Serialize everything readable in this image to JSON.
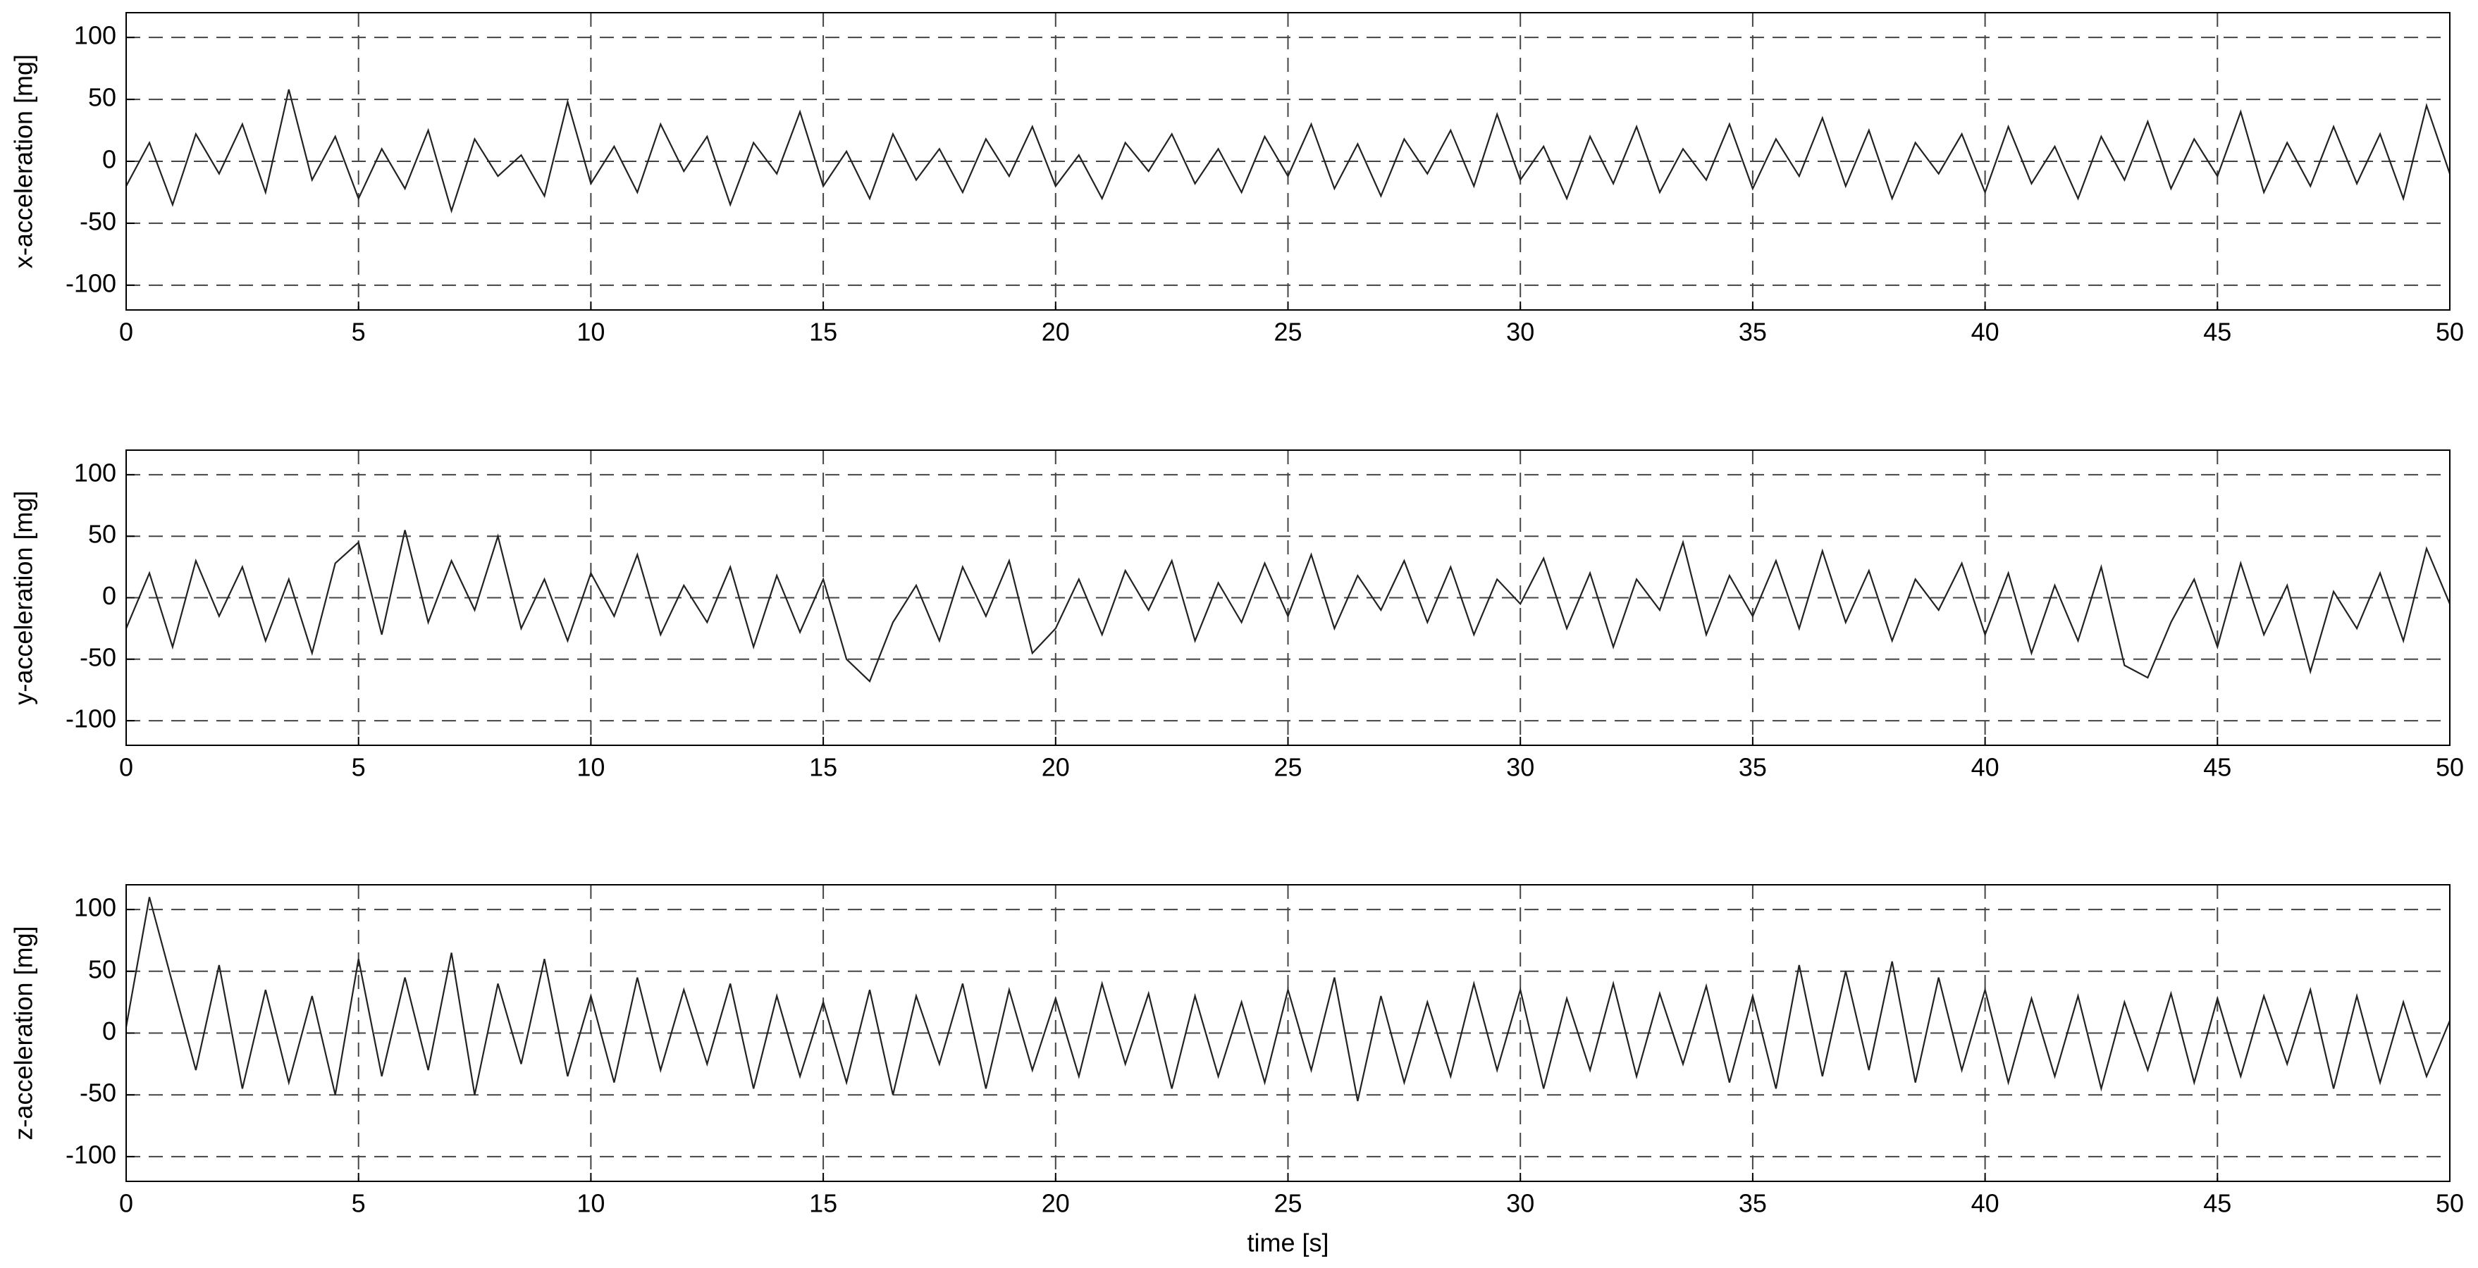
{
  "chart_data": [
    {
      "type": "line",
      "ylabel": "x-acceleration [mg]",
      "color": "#222222",
      "grid": true,
      "xlim": [
        0,
        50
      ],
      "xticks": [
        0,
        5,
        10,
        15,
        20,
        25,
        30,
        35,
        40,
        45,
        50
      ],
      "ylim": [
        -120,
        120
      ],
      "yticks": [
        -100,
        -50,
        0,
        50,
        100
      ],
      "x": [
        0,
        0.5,
        1,
        1.5,
        2,
        2.5,
        3,
        3.5,
        4,
        4.5,
        5,
        5.5,
        6,
        6.5,
        7,
        7.5,
        8,
        8.5,
        9,
        9.5,
        10,
        10.5,
        11,
        11.5,
        12,
        12.5,
        13,
        13.5,
        14,
        14.5,
        15,
        15.5,
        16,
        16.5,
        17,
        17.5,
        18,
        18.5,
        19,
        19.5,
        20,
        20.5,
        21,
        21.5,
        22,
        22.5,
        23,
        23.5,
        24,
        24.5,
        25,
        25.5,
        26,
        26.5,
        27,
        27.5,
        28,
        28.5,
        29,
        29.5,
        30,
        30.5,
        31,
        31.5,
        32,
        32.5,
        33,
        33.5,
        34,
        34.5,
        35,
        35.5,
        36,
        36.5,
        37,
        37.5,
        38,
        38.5,
        39,
        39.5,
        40,
        40.5,
        41,
        41.5,
        42,
        42.5,
        43,
        43.5,
        44,
        44.5,
        45,
        45.5,
        46,
        46.5,
        47,
        47.5,
        48,
        48.5,
        49,
        49.5,
        50
      ],
      "values": [
        -20,
        15,
        -35,
        22,
        -10,
        30,
        -25,
        58,
        -15,
        20,
        -30,
        10,
        -22,
        25,
        -40,
        18,
        -12,
        5,
        -28,
        48,
        -18,
        12,
        -25,
        30,
        -8,
        20,
        -35,
        15,
        -10,
        40,
        -20,
        8,
        -30,
        22,
        -15,
        10,
        -25,
        18,
        -12,
        28,
        -20,
        5,
        -30,
        15,
        -8,
        22,
        -18,
        10,
        -25,
        20,
        -12,
        30,
        -22,
        14,
        -28,
        18,
        -10,
        25,
        -20,
        38,
        -15,
        12,
        -30,
        20,
        -18,
        28,
        -25,
        10,
        -15,
        30,
        -22,
        18,
        -12,
        35,
        -20,
        25,
        -30,
        15,
        -10,
        22,
        -25,
        28,
        -18,
        12,
        -30,
        20,
        -15,
        32,
        -22,
        18,
        -12,
        40,
        -25,
        15,
        -20,
        28,
        -18,
        22,
        -30,
        45,
        -10
      ]
    },
    {
      "type": "line",
      "ylabel": "y-acceleration [mg]",
      "color": "#222222",
      "grid": true,
      "xlim": [
        0,
        50
      ],
      "xticks": [
        0,
        5,
        10,
        15,
        20,
        25,
        30,
        35,
        40,
        45,
        50
      ],
      "ylim": [
        -120,
        120
      ],
      "yticks": [
        -100,
        -50,
        0,
        50,
        100
      ],
      "x": [
        0,
        0.5,
        1,
        1.5,
        2,
        2.5,
        3,
        3.5,
        4,
        4.5,
        5,
        5.5,
        6,
        6.5,
        7,
        7.5,
        8,
        8.5,
        9,
        9.5,
        10,
        10.5,
        11,
        11.5,
        12,
        12.5,
        13,
        13.5,
        14,
        14.5,
        15,
        15.5,
        16,
        16.5,
        17,
        17.5,
        18,
        18.5,
        19,
        19.5,
        20,
        20.5,
        21,
        21.5,
        22,
        22.5,
        23,
        23.5,
        24,
        24.5,
        25,
        25.5,
        26,
        26.5,
        27,
        27.5,
        28,
        28.5,
        29,
        29.5,
        30,
        30.5,
        31,
        31.5,
        32,
        32.5,
        33,
        33.5,
        34,
        34.5,
        35,
        35.5,
        36,
        36.5,
        37,
        37.5,
        38,
        38.5,
        39,
        39.5,
        40,
        40.5,
        41,
        41.5,
        42,
        42.5,
        43,
        43.5,
        44,
        44.5,
        45,
        45.5,
        46,
        46.5,
        47,
        47.5,
        48,
        48.5,
        49,
        49.5,
        50
      ],
      "values": [
        -25,
        20,
        -40,
        30,
        -15,
        25,
        -35,
        15,
        -45,
        28,
        45,
        -30,
        55,
        -20,
        30,
        -10,
        50,
        -25,
        15,
        -35,
        20,
        -15,
        35,
        -30,
        10,
        -20,
        25,
        -40,
        18,
        -28,
        15,
        -50,
        -68,
        -20,
        10,
        -35,
        25,
        -15,
        30,
        -45,
        -25,
        15,
        -30,
        22,
        -10,
        30,
        -35,
        12,
        -20,
        28,
        -15,
        35,
        -25,
        18,
        -10,
        30,
        -20,
        25,
        -30,
        15,
        -5,
        32,
        -25,
        20,
        -40,
        15,
        -10,
        45,
        -30,
        18,
        -15,
        30,
        -25,
        38,
        -20,
        22,
        -35,
        15,
        -10,
        28,
        -30,
        20,
        -45,
        10,
        -35,
        25,
        -55,
        -65,
        -20,
        15,
        -40,
        28,
        -30,
        10,
        -60,
        5,
        -25,
        20,
        -35,
        40,
        -5
      ]
    },
    {
      "type": "line",
      "ylabel": "z-acceleration [mg]",
      "xlabel": "time [s]",
      "color": "#222222",
      "grid": true,
      "xlim": [
        0,
        50
      ],
      "xticks": [
        0,
        5,
        10,
        15,
        20,
        25,
        30,
        35,
        40,
        45,
        50
      ],
      "ylim": [
        -120,
        120
      ],
      "yticks": [
        -100,
        -50,
        0,
        50,
        100
      ],
      "x": [
        0,
        0.5,
        1,
        1.5,
        2,
        2.5,
        3,
        3.5,
        4,
        4.5,
        5,
        5.5,
        6,
        6.5,
        7,
        7.5,
        8,
        8.5,
        9,
        9.5,
        10,
        10.5,
        11,
        11.5,
        12,
        12.5,
        13,
        13.5,
        14,
        14.5,
        15,
        15.5,
        16,
        16.5,
        17,
        17.5,
        18,
        18.5,
        19,
        19.5,
        20,
        20.5,
        21,
        21.5,
        22,
        22.5,
        23,
        23.5,
        24,
        24.5,
        25,
        25.5,
        26,
        26.5,
        27,
        27.5,
        28,
        28.5,
        29,
        29.5,
        30,
        30.5,
        31,
        31.5,
        32,
        32.5,
        33,
        33.5,
        34,
        34.5,
        35,
        35.5,
        36,
        36.5,
        37,
        37.5,
        38,
        38.5,
        39,
        39.5,
        40,
        40.5,
        41,
        41.5,
        42,
        42.5,
        43,
        43.5,
        44,
        44.5,
        45,
        45.5,
        46,
        46.5,
        47,
        47.5,
        48,
        48.5,
        49,
        49.5,
        50
      ],
      "values": [
        5,
        110,
        40,
        -30,
        55,
        -45,
        35,
        -40,
        30,
        -50,
        60,
        -35,
        45,
        -30,
        65,
        -50,
        40,
        -25,
        60,
        -35,
        30,
        -40,
        45,
        -30,
        35,
        -25,
        40,
        -45,
        30,
        -35,
        25,
        -40,
        35,
        -50,
        30,
        -25,
        40,
        -45,
        35,
        -30,
        28,
        -35,
        40,
        -25,
        32,
        -45,
        30,
        -35,
        25,
        -40,
        35,
        -30,
        45,
        -55,
        30,
        -40,
        25,
        -35,
        40,
        -30,
        35,
        -45,
        28,
        -30,
        40,
        -35,
        32,
        -25,
        38,
        -40,
        30,
        -45,
        55,
        -35,
        50,
        -30,
        58,
        -40,
        45,
        -30,
        35,
        -40,
        28,
        -35,
        30,
        -45,
        25,
        -30,
        32,
        -40,
        28,
        -35,
        30,
        -25,
        35,
        -45,
        30,
        -40,
        25,
        -35,
        10
      ]
    }
  ]
}
